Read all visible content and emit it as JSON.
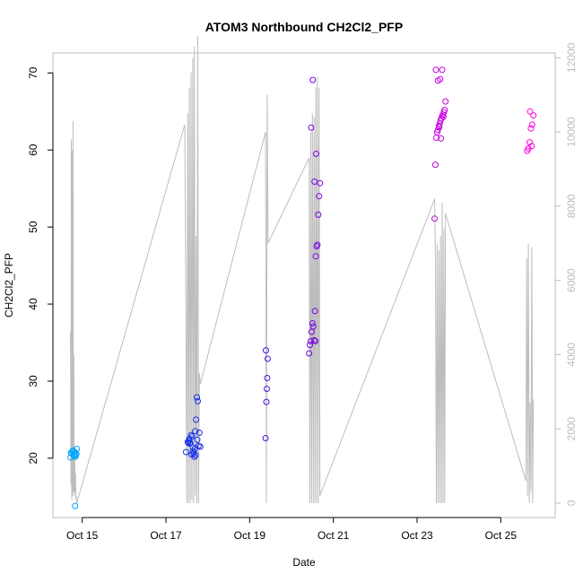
{
  "chart_data": {
    "type": "scatter",
    "title": "ATOM3 Northbound CH2Cl2_PFP",
    "xlabel": "Date",
    "ylabel": "CH2Cl2_PFP",
    "x_ticks": [
      "Oct 15",
      "Oct 17",
      "Oct 19",
      "Oct 21",
      "Oct 23",
      "Oct 25"
    ],
    "x_tick_values": [
      15,
      17,
      19,
      21,
      23,
      25
    ],
    "xlim": [
      14.3,
      26.3
    ],
    "ylim": [
      12.3,
      72.6
    ],
    "y_ticks": [
      20,
      30,
      40,
      50,
      60,
      70
    ],
    "y2_ticks": [
      0,
      2000,
      4000,
      6000,
      8000,
      10000,
      12000
    ],
    "y2lim": [
      -390,
      12130
    ],
    "axis_color": "#bdbdbd",
    "scatter_series": {
      "x": [
        14.72,
        14.75,
        14.78,
        14.8,
        14.82,
        14.85,
        14.87,
        14.73,
        14.77,
        14.81,
        14.84,
        14.86,
        14.83,
        17.48,
        17.52,
        17.55,
        17.57,
        17.6,
        17.62,
        17.64,
        17.66,
        17.68,
        17.7,
        17.72,
        17.74,
        17.76,
        17.78,
        17.58,
        17.65,
        17.71,
        17.8,
        17.82,
        17.56,
        17.61,
        17.69,
        17.75,
        17.53,
        19.38,
        19.4,
        19.41,
        19.42,
        19.43,
        19.39,
        20.42,
        20.44,
        20.46,
        20.48,
        20.5,
        20.52,
        20.54,
        20.56,
        20.58,
        20.6,
        20.62,
        20.64,
        20.66,
        20.68,
        20.55,
        20.59,
        20.47,
        20.51,
        20.57,
        23.42,
        23.44,
        23.46,
        23.48,
        23.5,
        23.52,
        23.54,
        23.56,
        23.58,
        23.6,
        23.62,
        23.64,
        23.66,
        23.68,
        23.5,
        23.55,
        23.6,
        23.45,
        23.53,
        23.57,
        23.63,
        25.63,
        25.66,
        25.69,
        25.72,
        25.75,
        25.78,
        25.7,
        25.74
      ],
      "y": [
        20.1,
        20.6,
        21.0,
        20.3,
        20.8,
        20.4,
        21.2,
        20.7,
        20.9,
        20.5,
        20.2,
        20.6,
        13.8,
        20.8,
        22.1,
        22.3,
        21.9,
        23.0,
        22.8,
        21.4,
        20.6,
        20.2,
        23.5,
        25.0,
        27.9,
        27.4,
        21.6,
        22.0,
        20.9,
        20.4,
        23.3,
        21.5,
        22.5,
        20.5,
        21.2,
        22.4,
        22.0,
        22.6,
        27.3,
        29.0,
        30.4,
        32.9,
        34.0,
        33.6,
        34.7,
        35.2,
        36.4,
        37.5,
        37.1,
        35.3,
        39.1,
        46.2,
        47.5,
        47.7,
        51.6,
        54.0,
        55.7,
        55.9,
        59.5,
        62.9,
        69.1,
        35.2,
        51.1,
        58.1,
        61.6,
        62.3,
        62.6,
        63.1,
        63.4,
        63.8,
        64.1,
        64.4,
        64.6,
        64.9,
        65.2,
        66.3,
        69.0,
        69.2,
        70.4,
        70.4,
        63.0,
        61.5,
        64.3,
        59.9,
        60.2,
        61.0,
        62.8,
        63.3,
        64.5,
        65.0,
        60.5
      ]
    },
    "line_series": {
      "x": [
        14.72,
        14.73,
        14.74,
        14.75,
        14.76,
        14.77,
        14.78,
        14.79,
        14.8,
        14.81,
        14.82,
        14.83,
        14.84,
        14.85,
        14.86,
        14.87,
        17.45,
        17.48,
        17.5,
        17.52,
        17.54,
        17.56,
        17.58,
        17.6,
        17.62,
        17.64,
        17.66,
        17.68,
        17.7,
        17.72,
        17.74,
        17.76,
        17.78,
        17.8,
        17.82,
        19.38,
        19.4,
        19.42,
        19.44,
        20.42,
        20.44,
        20.46,
        20.48,
        20.5,
        20.52,
        20.54,
        20.56,
        20.58,
        20.6,
        20.62,
        20.64,
        20.66,
        20.68,
        23.42,
        23.44,
        23.46,
        23.48,
        23.5,
        23.52,
        23.54,
        23.56,
        23.58,
        23.6,
        23.62,
        23.64,
        23.66,
        23.68,
        25.6,
        25.62,
        25.64,
        25.66,
        25.68,
        25.7,
        25.72,
        25.74,
        25.76,
        25.78
      ],
      "y": [
        4600,
        500,
        9800,
        100,
        9500,
        200,
        10300,
        300,
        4000,
        200,
        1500,
        300,
        800,
        100,
        200,
        0,
        10200,
        4800,
        0,
        10500,
        0,
        11200,
        0,
        11600,
        100,
        12000,
        0,
        12300,
        200,
        7200,
        0,
        12600,
        0,
        3500,
        3200,
        10000,
        0,
        11000,
        7000,
        9300,
        0,
        10000,
        0,
        10500,
        0,
        10400,
        0,
        11200,
        0,
        11500,
        0,
        11200,
        200,
        8200,
        6500,
        0,
        7000,
        0,
        6800,
        0,
        7200,
        0,
        8100,
        0,
        7400,
        0,
        7800,
        600,
        6600,
        200,
        7000,
        0,
        2700,
        300,
        6900,
        0,
        2800
      ]
    }
  }
}
